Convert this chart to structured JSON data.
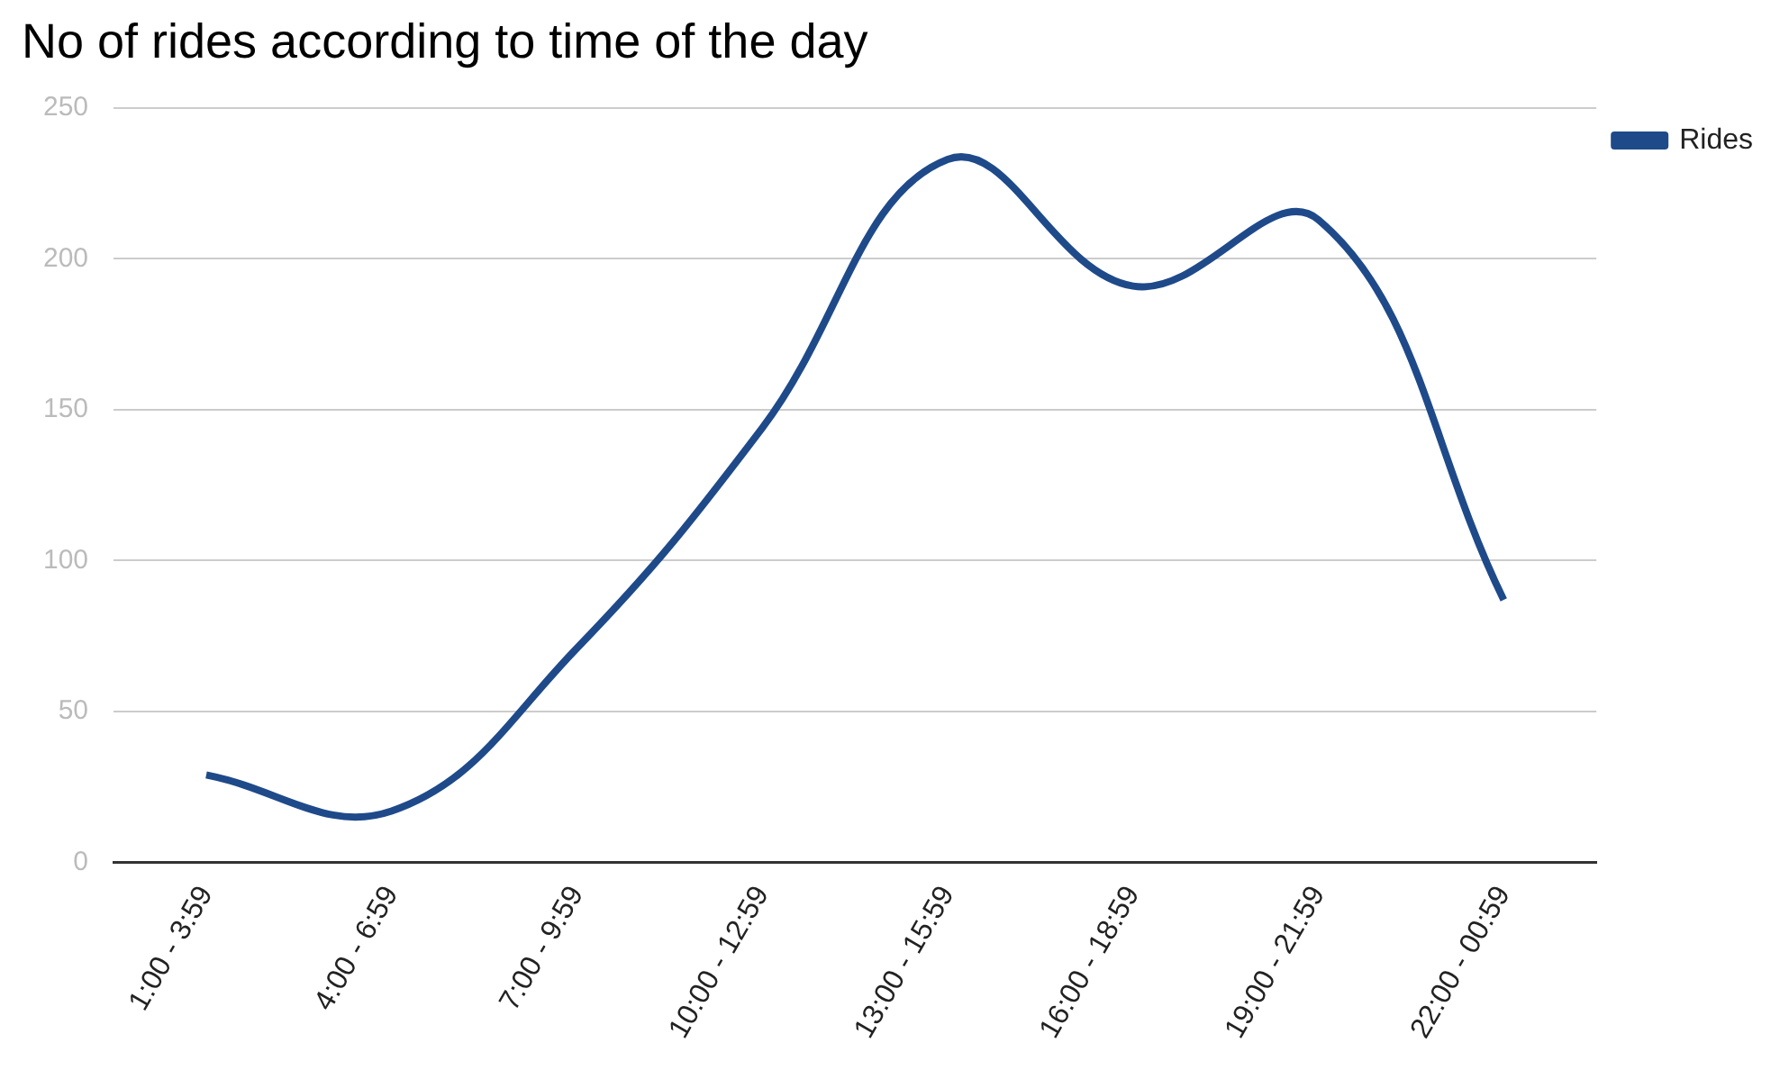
{
  "chart_data": {
    "type": "line",
    "title": "No of rides according to time of the day",
    "categories": [
      "1:00 - 3:59",
      "4:00 - 6:59",
      "7:00 - 9:59",
      "10:00 - 12:59",
      "13:00 - 15:59",
      "16:00 - 18:59",
      "19:00 - 21:59",
      "22:00 - 00:59"
    ],
    "series": [
      {
        "name": "Rides",
        "color": "#1f4a8a",
        "values": [
          29,
          17,
          71,
          144,
          233,
          191,
          213,
          87
        ]
      }
    ],
    "ylim": [
      0,
      250
    ],
    "yticks": [
      0,
      50,
      100,
      150,
      200,
      250
    ],
    "grid": "y",
    "legend": "top right",
    "marker": "none",
    "line_style": "solid"
  }
}
